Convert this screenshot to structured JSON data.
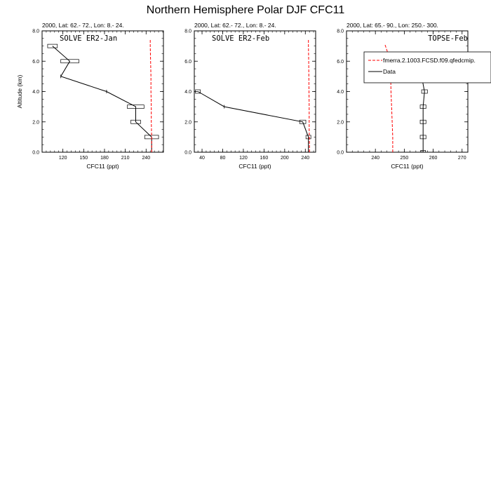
{
  "figure": {
    "title": "Northern Hemisphere Polar DJF CFC11"
  },
  "chart_data": [
    {
      "type": "line",
      "subtitle": "2000, Lat: 62.- 72., Lon: 8.- 24.",
      "panel_label": "SOLVE ER2-Jan",
      "xlabel": "CFC11 (ppt)",
      "ylabel": "Altitude (km)",
      "xlim": [
        90,
        265
      ],
      "ylim": [
        0,
        8
      ],
      "xticks": [
        120,
        150,
        180,
        210,
        240
      ],
      "yticks": [
        0,
        2,
        4,
        6,
        8
      ],
      "ytick_labels": [
        "0.0",
        "2.0",
        "4.0",
        "6.0",
        "8.0"
      ],
      "series": [
        {
          "style": "data",
          "color": "#000000",
          "points": [
            {
              "x": 248,
              "y": 0.0
            },
            {
              "x": 248,
              "y": 1.0,
              "err": 10
            },
            {
              "x": 225,
              "y": 2.0,
              "err": 7
            },
            {
              "x": 225,
              "y": 3.0,
              "err": 12
            },
            {
              "x": 183,
              "y": 4.0,
              "err": 0
            },
            {
              "x": 117,
              "y": 5.0,
              "err": 0
            },
            {
              "x": 130,
              "y": 6.0,
              "err": 13
            },
            {
              "x": 105,
              "y": 7.0,
              "err": 7
            }
          ]
        },
        {
          "style": "model",
          "color": "#ff0000",
          "points": [
            {
              "x": 248,
              "y": 0.0
            },
            {
              "x": 248,
              "y": 1.0
            },
            {
              "x": 247.5,
              "y": 2.0
            },
            {
              "x": 247.5,
              "y": 3.0
            },
            {
              "x": 247,
              "y": 4.0
            },
            {
              "x": 247,
              "y": 5.0
            },
            {
              "x": 246.5,
              "y": 6.0
            },
            {
              "x": 246,
              "y": 7.0
            },
            {
              "x": 246,
              "y": 7.4
            }
          ]
        }
      ]
    },
    {
      "type": "line",
      "subtitle": "2000, Lat: 62.- 72., Lon: 8.- 24.",
      "panel_label": "SOLVE ER2-Feb",
      "xlabel": "CFC11 (ppt)",
      "ylabel": "",
      "xlim": [
        25,
        260
      ],
      "ylim": [
        0,
        8
      ],
      "xticks": [
        40,
        80,
        120,
        160,
        200,
        240
      ],
      "yticks": [
        0,
        2,
        4,
        6,
        8
      ],
      "ytick_labels": [
        "0.0",
        "2.0",
        "4.0",
        "6.0",
        "8.0"
      ],
      "series": [
        {
          "style": "data",
          "color": "#000000",
          "points": [
            {
              "x": 246,
              "y": 0.0
            },
            {
              "x": 246,
              "y": 1.0,
              "err": 2
            },
            {
              "x": 235,
              "y": 2.0,
              "err": 6
            },
            {
              "x": 83,
              "y": 3.0,
              "err": 0
            },
            {
              "x": 32,
              "y": 4.0,
              "err": 4
            }
          ]
        },
        {
          "style": "model",
          "color": "#ff0000",
          "points": [
            {
              "x": 248,
              "y": 0.0
            },
            {
              "x": 248,
              "y": 0.5
            },
            {
              "x": 247.5,
              "y": 1.5
            },
            {
              "x": 247.5,
              "y": 3.0
            },
            {
              "x": 247,
              "y": 4.5
            },
            {
              "x": 246.5,
              "y": 6.0
            },
            {
              "x": 246,
              "y": 7.0
            },
            {
              "x": 246,
              "y": 7.4
            }
          ]
        }
      ]
    },
    {
      "type": "line",
      "subtitle": "2000, Lat: 65.- 90., Lon: 250.- 300.",
      "panel_label": "TOPSE-Feb",
      "xlabel": "CFC11 (ppt)",
      "ylabel": "",
      "xlim": [
        230,
        272
      ],
      "ylim": [
        0,
        8
      ],
      "xticks": [
        240,
        250,
        260,
        270
      ],
      "yticks": [
        0,
        2,
        4,
        6,
        8
      ],
      "ytick_labels": [
        "0.0",
        "2.0",
        "4.0",
        "6.0",
        "8.0"
      ],
      "legend": {
        "position": "top-right",
        "entries": [
          {
            "label": "fmerra.2.1003.FCSD.f09.qfedcmip.",
            "style": "model",
            "color": "#ff0000"
          },
          {
            "label": "Data",
            "style": "data",
            "color": "#000000"
          }
        ]
      },
      "series": [
        {
          "style": "data",
          "color": "#000000",
          "points": [
            {
              "x": 256.5,
              "y": 0.0,
              "err": 0.6
            },
            {
              "x": 256.5,
              "y": 1.0,
              "err": 1
            },
            {
              "x": 256.5,
              "y": 2.0,
              "err": 1
            },
            {
              "x": 256.5,
              "y": 3.0,
              "err": 1
            },
            {
              "x": 257,
              "y": 4.0,
              "err": 1
            },
            {
              "x": 256,
              "y": 5.0,
              "err": 1
            },
            {
              "x": 256.5,
              "y": 6.0,
              "err": 0.6
            }
          ]
        },
        {
          "style": "model",
          "color": "#ff0000",
          "points": [
            {
              "x": 246,
              "y": 0.0
            },
            {
              "x": 246,
              "y": 1.0
            },
            {
              "x": 245.8,
              "y": 2.0
            },
            {
              "x": 245.6,
              "y": 3.0
            },
            {
              "x": 245.4,
              "y": 4.0
            },
            {
              "x": 245.3,
              "y": 5.0
            },
            {
              "x": 245,
              "y": 6.0
            },
            {
              "x": 244.2,
              "y": 6.6
            },
            {
              "x": 243.3,
              "y": 7.1
            }
          ]
        }
      ]
    }
  ]
}
